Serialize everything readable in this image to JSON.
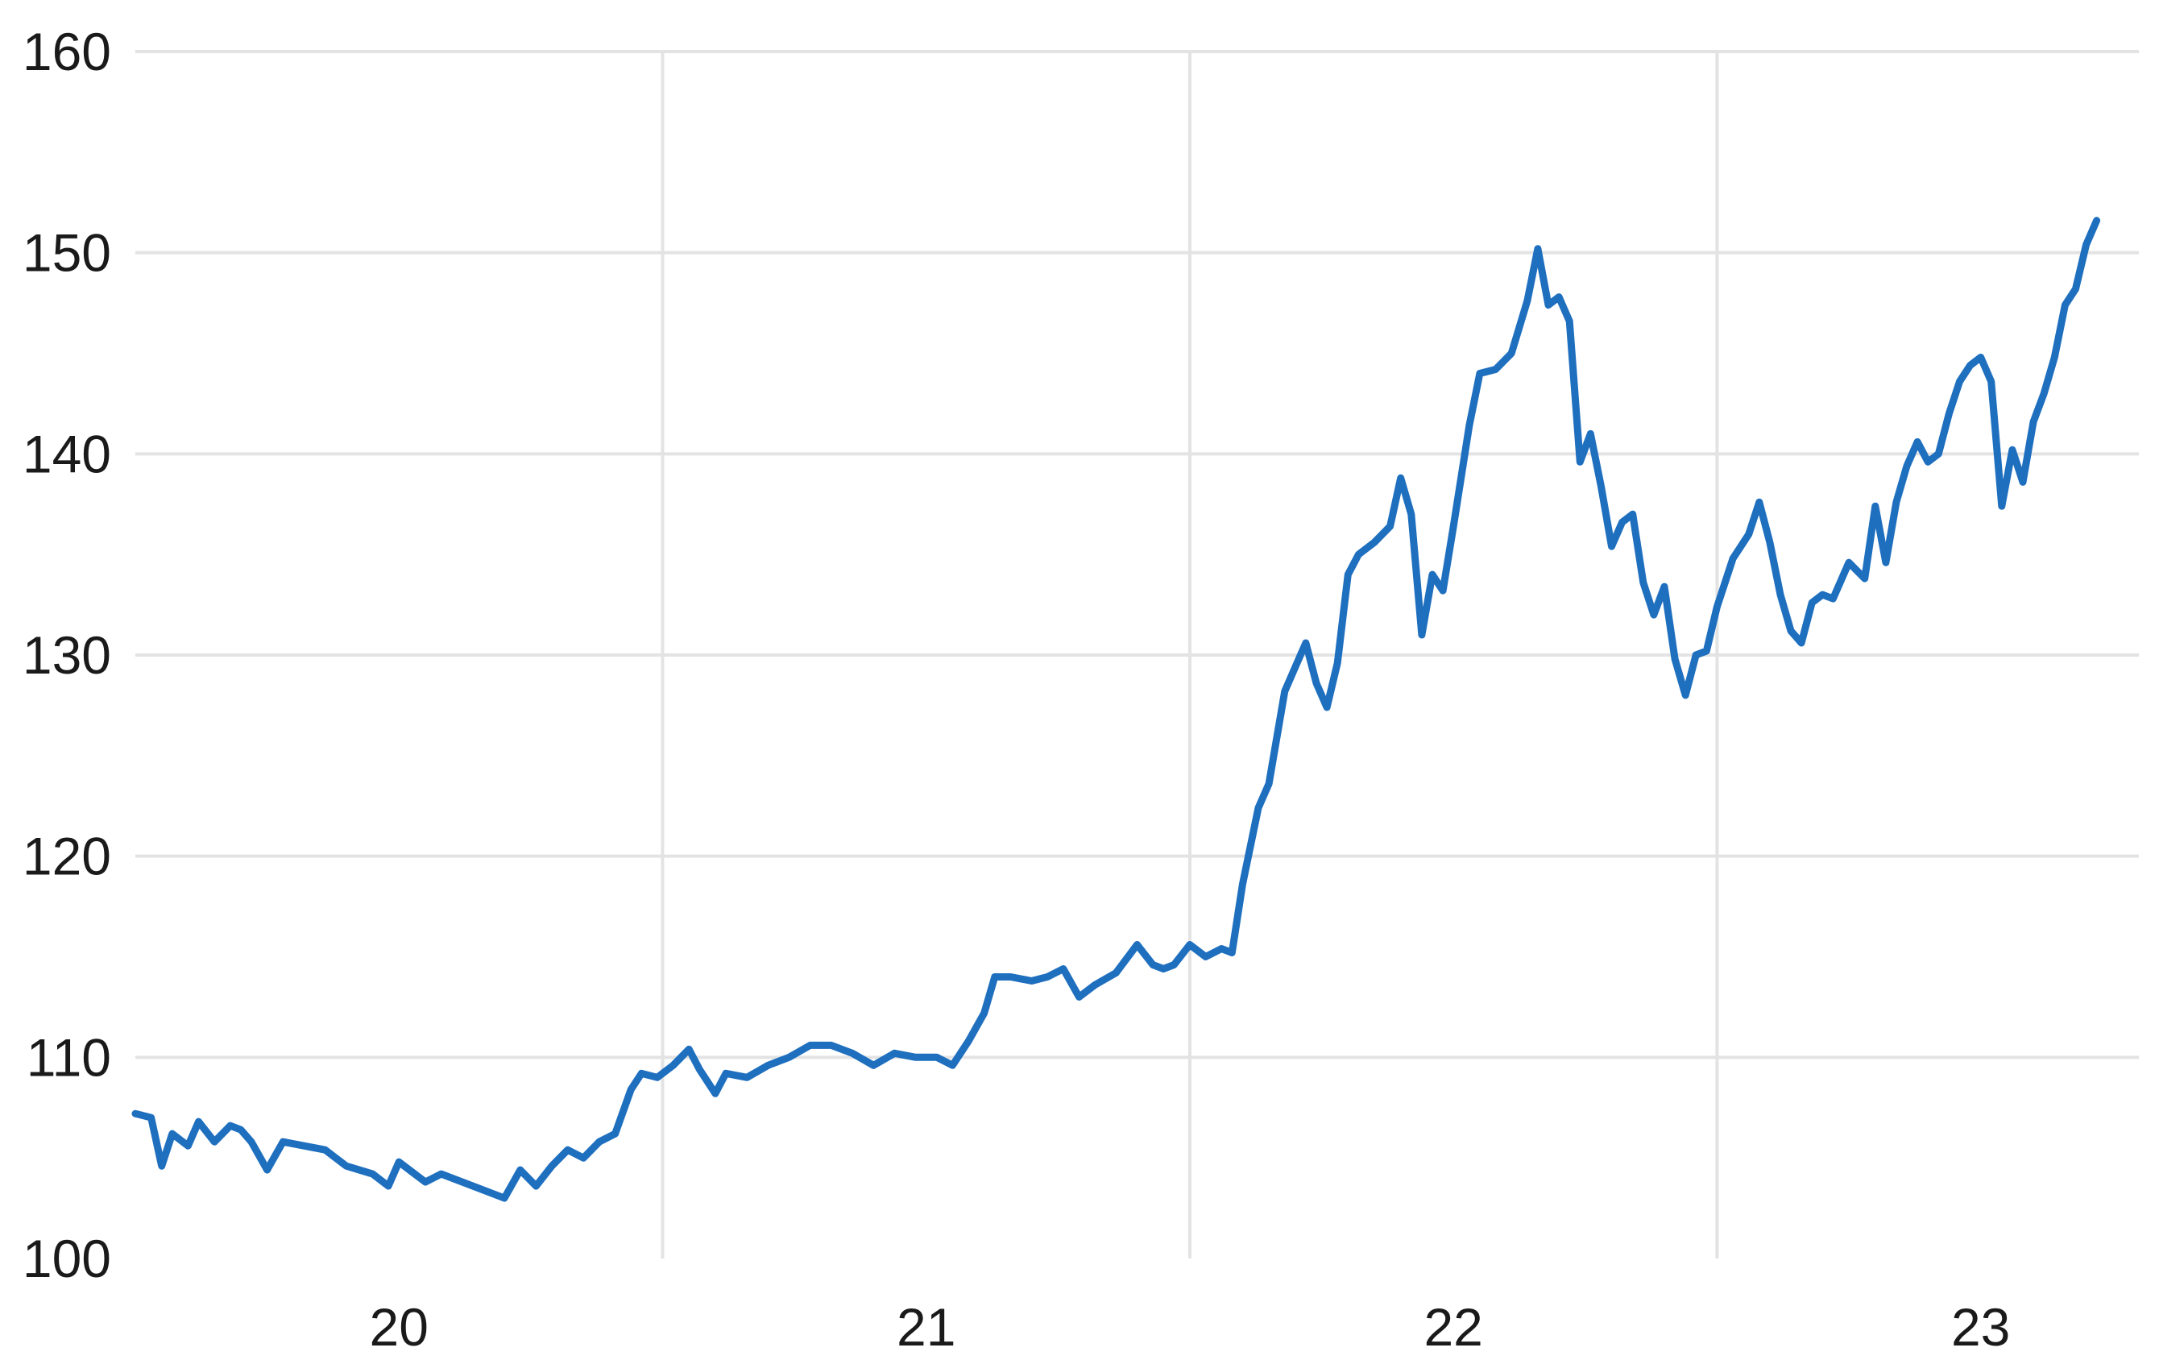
{
  "colors": {
    "series": "#1f6fbf",
    "grid": "#e3e3e3",
    "text": "#1a1a1a"
  },
  "chart_data": {
    "type": "line",
    "title": "",
    "xlabel": "",
    "ylabel": "",
    "grid": true,
    "ylim": [
      100,
      160
    ],
    "xlim": [
      2019.5,
      2023.3
    ],
    "y_ticks": [
      100,
      110,
      120,
      130,
      140,
      150,
      160
    ],
    "y_tick_labels": [
      "100",
      "110",
      "120",
      "130",
      "140",
      "150",
      "160"
    ],
    "x_gridlines": [
      2020.5,
      2021.5,
      2022.5
    ],
    "x_tick_labels": [
      {
        "label": "20",
        "at": 2020.0
      },
      {
        "label": "21",
        "at": 2021.0
      },
      {
        "label": "22",
        "at": 2022.0
      },
      {
        "label": "23",
        "at": 2023.0
      }
    ],
    "series": [
      {
        "color": "#1f6fbf",
        "points": [
          [
            2019.5,
            107.2
          ],
          [
            2019.53,
            107.0
          ],
          [
            2019.55,
            104.6
          ],
          [
            2019.57,
            106.2
          ],
          [
            2019.6,
            105.6
          ],
          [
            2019.62,
            106.8
          ],
          [
            2019.65,
            105.8
          ],
          [
            2019.68,
            106.6
          ],
          [
            2019.7,
            106.4
          ],
          [
            2019.72,
            105.8
          ],
          [
            2019.75,
            104.4
          ],
          [
            2019.78,
            105.8
          ],
          [
            2019.82,
            105.6
          ],
          [
            2019.86,
            105.4
          ],
          [
            2019.9,
            104.6
          ],
          [
            2019.95,
            104.2
          ],
          [
            2019.98,
            103.6
          ],
          [
            2020.0,
            104.8
          ],
          [
            2020.05,
            103.8
          ],
          [
            2020.08,
            104.2
          ],
          [
            2020.12,
            103.8
          ],
          [
            2020.16,
            103.4
          ],
          [
            2020.2,
            103.0
          ],
          [
            2020.23,
            104.4
          ],
          [
            2020.26,
            103.6
          ],
          [
            2020.29,
            104.6
          ],
          [
            2020.32,
            105.4
          ],
          [
            2020.35,
            105.0
          ],
          [
            2020.38,
            105.8
          ],
          [
            2020.41,
            106.2
          ],
          [
            2020.44,
            108.4
          ],
          [
            2020.46,
            109.2
          ],
          [
            2020.49,
            109.0
          ],
          [
            2020.52,
            109.6
          ],
          [
            2020.55,
            110.4
          ],
          [
            2020.57,
            109.4
          ],
          [
            2020.6,
            108.2
          ],
          [
            2020.62,
            109.2
          ],
          [
            2020.66,
            109.0
          ],
          [
            2020.7,
            109.6
          ],
          [
            2020.74,
            110.0
          ],
          [
            2020.78,
            110.6
          ],
          [
            2020.82,
            110.6
          ],
          [
            2020.86,
            110.2
          ],
          [
            2020.9,
            109.6
          ],
          [
            2020.94,
            110.2
          ],
          [
            2020.98,
            110.0
          ],
          [
            2021.02,
            110.0
          ],
          [
            2021.05,
            109.6
          ],
          [
            2021.08,
            110.8
          ],
          [
            2021.11,
            112.2
          ],
          [
            2021.13,
            114.0
          ],
          [
            2021.16,
            114.0
          ],
          [
            2021.2,
            113.8
          ],
          [
            2021.23,
            114.0
          ],
          [
            2021.26,
            114.4
          ],
          [
            2021.29,
            113.0
          ],
          [
            2021.32,
            113.6
          ],
          [
            2021.36,
            114.2
          ],
          [
            2021.4,
            115.6
          ],
          [
            2021.43,
            114.6
          ],
          [
            2021.45,
            114.4
          ],
          [
            2021.47,
            114.6
          ],
          [
            2021.5,
            115.6
          ],
          [
            2021.53,
            115.0
          ],
          [
            2021.56,
            115.4
          ],
          [
            2021.58,
            115.2
          ],
          [
            2021.6,
            118.6
          ],
          [
            2021.63,
            122.4
          ],
          [
            2021.65,
            123.6
          ],
          [
            2021.68,
            128.2
          ],
          [
            2021.7,
            129.4
          ],
          [
            2021.72,
            130.6
          ],
          [
            2021.74,
            128.6
          ],
          [
            2021.76,
            127.4
          ],
          [
            2021.78,
            129.6
          ],
          [
            2021.8,
            134.0
          ],
          [
            2021.82,
            135.0
          ],
          [
            2021.85,
            135.6
          ],
          [
            2021.88,
            136.4
          ],
          [
            2021.9,
            138.8
          ],
          [
            2021.92,
            137.0
          ],
          [
            2021.94,
            131.0
          ],
          [
            2021.96,
            134.0
          ],
          [
            2021.98,
            133.2
          ],
          [
            2022.0,
            136.4
          ],
          [
            2022.03,
            141.4
          ],
          [
            2022.05,
            144.0
          ],
          [
            2022.08,
            144.2
          ],
          [
            2022.11,
            145.0
          ],
          [
            2022.14,
            147.6
          ],
          [
            2022.16,
            150.2
          ],
          [
            2022.18,
            147.4
          ],
          [
            2022.2,
            147.8
          ],
          [
            2022.22,
            146.6
          ],
          [
            2022.24,
            139.6
          ],
          [
            2022.26,
            141.0
          ],
          [
            2022.28,
            138.4
          ],
          [
            2022.3,
            135.4
          ],
          [
            2022.32,
            136.6
          ],
          [
            2022.34,
            137.0
          ],
          [
            2022.36,
            133.6
          ],
          [
            2022.38,
            132.0
          ],
          [
            2022.4,
            133.4
          ],
          [
            2022.42,
            129.8
          ],
          [
            2022.44,
            128.0
          ],
          [
            2022.46,
            130.0
          ],
          [
            2022.48,
            130.2
          ],
          [
            2022.5,
            132.4
          ],
          [
            2022.53,
            134.8
          ],
          [
            2022.56,
            136.0
          ],
          [
            2022.58,
            137.6
          ],
          [
            2022.6,
            135.6
          ],
          [
            2022.62,
            133.0
          ],
          [
            2022.64,
            131.2
          ],
          [
            2022.66,
            130.6
          ],
          [
            2022.68,
            132.6
          ],
          [
            2022.7,
            133.0
          ],
          [
            2022.72,
            132.8
          ],
          [
            2022.75,
            134.6
          ],
          [
            2022.78,
            133.8
          ],
          [
            2022.8,
            137.4
          ],
          [
            2022.82,
            134.6
          ],
          [
            2022.84,
            137.6
          ],
          [
            2022.86,
            139.4
          ],
          [
            2022.88,
            140.6
          ],
          [
            2022.9,
            139.6
          ],
          [
            2022.92,
            140.0
          ],
          [
            2022.94,
            142.0
          ],
          [
            2022.96,
            143.6
          ],
          [
            2022.98,
            144.4
          ],
          [
            2023.0,
            144.8
          ],
          [
            2023.02,
            143.6
          ],
          [
            2023.04,
            137.4
          ],
          [
            2023.06,
            140.2
          ],
          [
            2023.08,
            138.6
          ],
          [
            2023.1,
            141.6
          ],
          [
            2023.12,
            143.0
          ],
          [
            2023.14,
            144.8
          ],
          [
            2023.16,
            147.4
          ],
          [
            2023.18,
            148.2
          ],
          [
            2023.2,
            150.4
          ],
          [
            2023.22,
            151.6
          ]
        ]
      }
    ]
  }
}
